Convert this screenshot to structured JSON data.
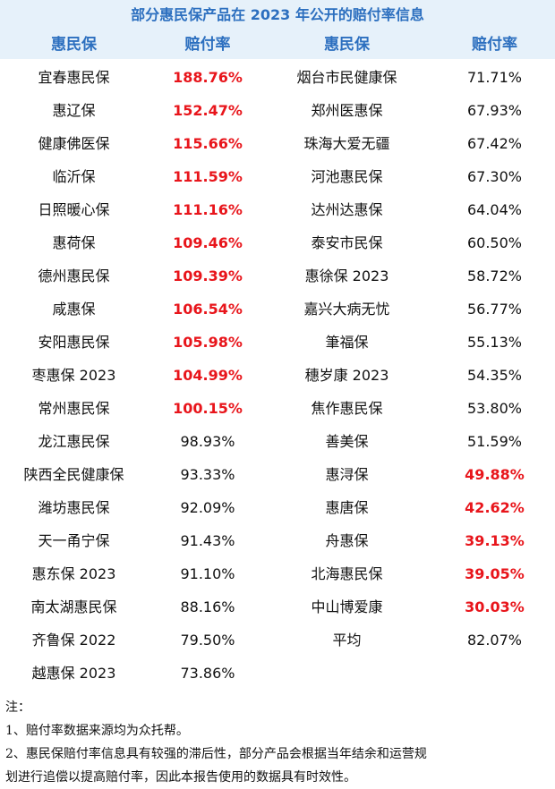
{
  "title": "部分惠民保产品在 2023 年公开的赔付率信息",
  "headers": [
    "惠民保",
    "赔付率",
    "惠民保",
    "赔付率"
  ],
  "left_rows": [
    {
      "name": "宜春惠民保",
      "rate": "188.76%",
      "highlight": true
    },
    {
      "name": "惠辽保",
      "rate": "152.47%",
      "highlight": true
    },
    {
      "name": "健康佛医保",
      "rate": "115.66%",
      "highlight": true
    },
    {
      "name": "临沂保",
      "rate": "111.59%",
      "highlight": true
    },
    {
      "name": "日照暖心保",
      "rate": "111.16%",
      "highlight": true
    },
    {
      "name": "惠荷保",
      "rate": "109.46%",
      "highlight": true
    },
    {
      "name": "德州惠民保",
      "rate": "109.39%",
      "highlight": true
    },
    {
      "name": "咸惠保",
      "rate": "106.54%",
      "highlight": true
    },
    {
      "name": "安阳惠民保",
      "rate": "105.98%",
      "highlight": true
    },
    {
      "name": "枣惠保 2023",
      "rate": "104.99%",
      "highlight": true
    },
    {
      "name": "常州惠民保",
      "rate": "100.15%",
      "highlight": true
    },
    {
      "name": "龙江惠民保",
      "rate": "98.93%",
      "highlight": false
    },
    {
      "name": "陕西全民健康保",
      "rate": "93.33%",
      "highlight": false
    },
    {
      "name": "潍坊惠民保",
      "rate": "92.09%",
      "highlight": false
    },
    {
      "name": "天一甬宁保",
      "rate": "91.43%",
      "highlight": false
    },
    {
      "name": "惠东保 2023",
      "rate": "91.10%",
      "highlight": false
    },
    {
      "name": "南太湖惠民保",
      "rate": "88.16%",
      "highlight": false
    },
    {
      "name": "齐鲁保 2022",
      "rate": "79.50%",
      "highlight": false
    },
    {
      "name": "越惠保 2023",
      "rate": "73.86%",
      "highlight": false
    }
  ],
  "right_rows": [
    {
      "name": "烟台市民健康保",
      "rate": "71.71%",
      "highlight": false
    },
    {
      "name": "郑州医惠保",
      "rate": "67.93%",
      "highlight": false
    },
    {
      "name": "珠海大爱无疆",
      "rate": "67.42%",
      "highlight": false
    },
    {
      "name": "河池惠民保",
      "rate": "67.30%",
      "highlight": false
    },
    {
      "name": "达州达惠保",
      "rate": "64.04%",
      "highlight": false
    },
    {
      "name": "泰安市民保",
      "rate": "60.50%",
      "highlight": false
    },
    {
      "name": "惠徐保 2023",
      "rate": "58.72%",
      "highlight": false
    },
    {
      "name": "嘉兴大病无忧",
      "rate": "56.77%",
      "highlight": false
    },
    {
      "name": "筆福保",
      "rate": "55.13%",
      "highlight": false
    },
    {
      "name": "穗岁康 2023",
      "rate": "54.35%",
      "highlight": false
    },
    {
      "name": "焦作惠民保",
      "rate": "53.80%",
      "highlight": false
    },
    {
      "name": "善美保",
      "rate": "51.59%",
      "highlight": false
    },
    {
      "name": "惠浔保",
      "rate": "49.88%",
      "highlight": true
    },
    {
      "name": "惠唐保",
      "rate": "42.62%",
      "highlight": true
    },
    {
      "name": "舟惠保",
      "rate": "39.13%",
      "highlight": true
    },
    {
      "name": "北海惠民保",
      "rate": "39.05%",
      "highlight": true
    },
    {
      "name": "中山博爱康",
      "rate": "30.03%",
      "highlight": true
    },
    {
      "name": "平均",
      "rate": "82.07%",
      "highlight": false
    }
  ],
  "notes": {
    "heading": "注：",
    "line1": "1、赔付率数据来源均为众托帮。",
    "line2": "2、惠民保赔付率信息具有较强的滞后性，部分产品会根据当年结余和运营规",
    "line3": "划进行追偿以提高赔付率，因此本报告使用的数据具有时效性。"
  },
  "colors": {
    "header_bg": "#e6f1fa",
    "header_text": "#2c6fbf",
    "highlight": "#e8151b"
  }
}
